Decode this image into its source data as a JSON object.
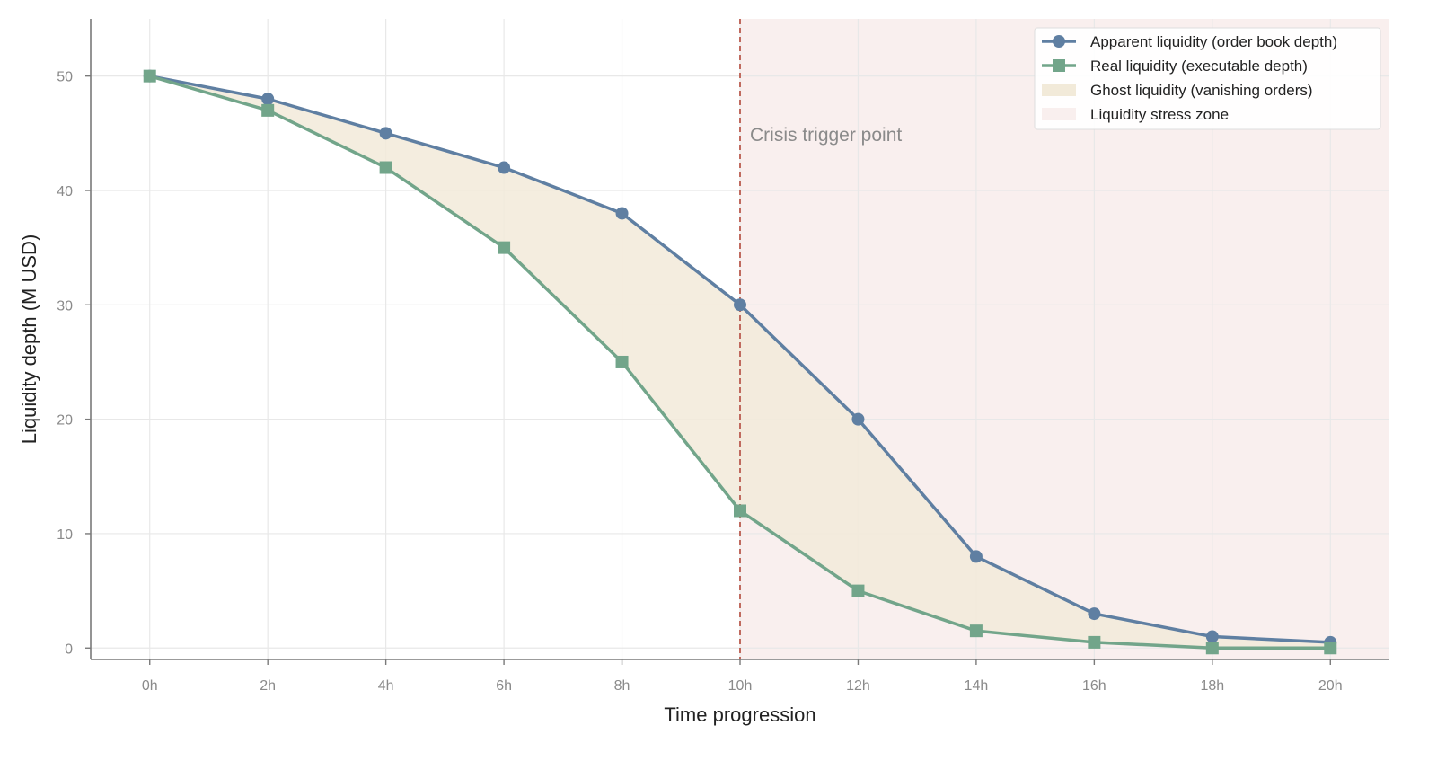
{
  "chart_data": {
    "type": "line",
    "title": "",
    "xlabel": "Time progression",
    "ylabel": "Liquidity depth (M USD)",
    "categories": [
      "0h",
      "2h",
      "4h",
      "6h",
      "8h",
      "10h",
      "12h",
      "14h",
      "16h",
      "18h",
      "20h"
    ],
    "x": [
      0,
      2,
      4,
      6,
      8,
      10,
      12,
      14,
      16,
      18,
      20
    ],
    "xlim": [
      -1,
      21
    ],
    "ylim": [
      -1,
      55
    ],
    "yticks": [
      0,
      10,
      20,
      30,
      40,
      50
    ],
    "grid": true,
    "legend_position": "top-right",
    "series": [
      {
        "name": "Apparent liquidity (order book depth)",
        "values": [
          50,
          48,
          45,
          42,
          38,
          30,
          20,
          8,
          3,
          1,
          0.5
        ],
        "color": "#5f7fa2",
        "marker": "circle"
      },
      {
        "name": "Real liquidity (executable depth)",
        "values": [
          50,
          47,
          42,
          35,
          25,
          12,
          5,
          1.5,
          0.5,
          0,
          0
        ],
        "color": "#72a58a",
        "marker": "square"
      }
    ],
    "fill_between": {
      "name": "Ghost liquidity (vanishing orders)",
      "color": "#f2ead9"
    },
    "stress_zone": {
      "name": "Liquidity stress zone",
      "x_start": 10,
      "x_end": 21,
      "color": "#f9efee"
    },
    "vline": {
      "x": 10,
      "label": "Crisis trigger point",
      "color": "#c06a5e"
    },
    "axis_color": "#7a7a7a",
    "grid_color": "#e8e8e8"
  }
}
